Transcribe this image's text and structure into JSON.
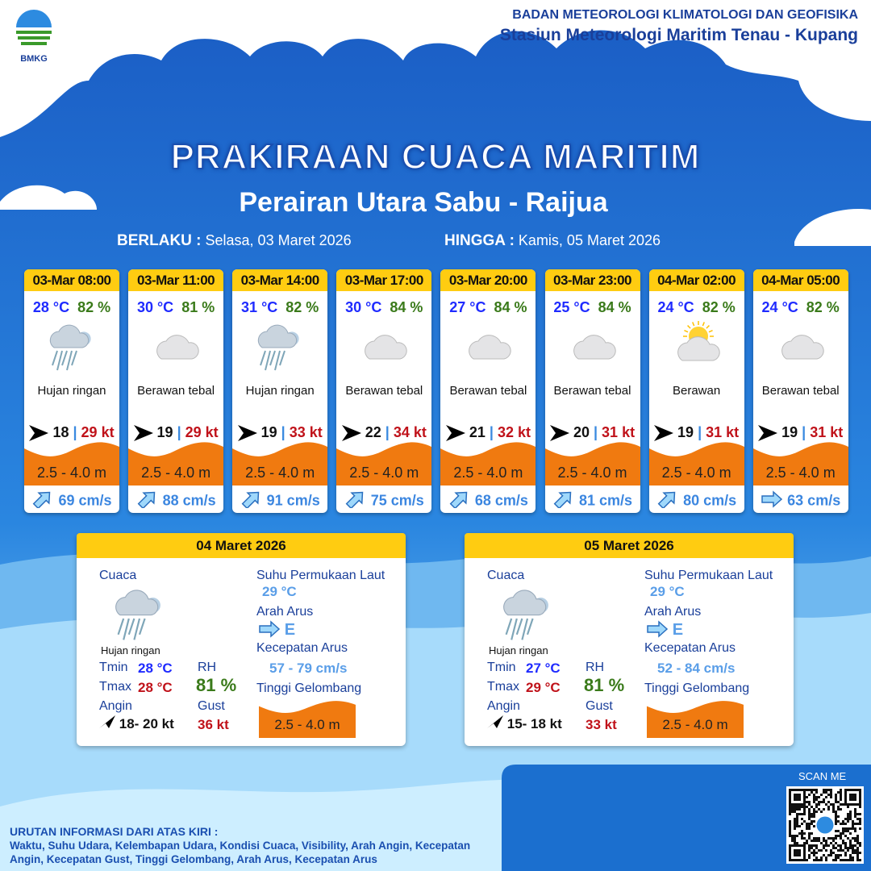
{
  "header": {
    "org": "BADAN METEOROLOGI KLIMATOLOGI DAN GEOFISIKA",
    "station": "Stasiun Meteorologi Maritim Tenau - Kupang",
    "logo_text": "BMKG"
  },
  "title": "PRAKIRAAN CUACA MARITIM",
  "subtitle": "Perairan Utara Sabu - Raijua",
  "period": {
    "from_label": "BERLAKU :",
    "from": "Selasa, 03 Maret 2026",
    "to_label": "HINGGA :",
    "to": "Kamis, 05 Maret 2026"
  },
  "colors": {
    "header_yellow": "#ffcc11",
    "wave_orange": "#f07a10",
    "temp_blue": "#1f2bff",
    "rh_green": "#3a7a1a",
    "gust_red": "#c0121a"
  },
  "forecasts": [
    {
      "time": "03-Mar 08:00",
      "temp": "28 °C",
      "rh": "82 %",
      "icon": "light-rain-icon",
      "cond": "Hujan ringan",
      "wind": "18",
      "gust": "29 kt",
      "wave": "2.5 - 4.0 m",
      "current_dir": "northeast",
      "current": "69 cm/s"
    },
    {
      "time": "03-Mar 11:00",
      "temp": "30 °C",
      "rh": "81 %",
      "icon": "overcast-icon",
      "cond": "Berawan tebal",
      "wind": "19",
      "gust": "29 kt",
      "wave": "2.5 - 4.0 m",
      "current_dir": "northeast",
      "current": "88 cm/s"
    },
    {
      "time": "03-Mar 14:00",
      "temp": "31 °C",
      "rh": "82 %",
      "icon": "light-rain-icon",
      "cond": "Hujan ringan",
      "wind": "19",
      "gust": "33 kt",
      "wave": "2.5 - 4.0 m",
      "current_dir": "northeast",
      "current": "91 cm/s"
    },
    {
      "time": "03-Mar 17:00",
      "temp": "30 °C",
      "rh": "84 %",
      "icon": "overcast-icon",
      "cond": "Berawan tebal",
      "wind": "22",
      "gust": "34 kt",
      "wave": "2.5 - 4.0 m",
      "current_dir": "northeast",
      "current": "75 cm/s"
    },
    {
      "time": "03-Mar 20:00",
      "temp": "27 °C",
      "rh": "84 %",
      "icon": "overcast-icon",
      "cond": "Berawan tebal",
      "wind": "21",
      "gust": "32 kt",
      "wave": "2.5 - 4.0 m",
      "current_dir": "northeast",
      "current": "68 cm/s"
    },
    {
      "time": "03-Mar 23:00",
      "temp": "25 °C",
      "rh": "84 %",
      "icon": "overcast-icon",
      "cond": "Berawan tebal",
      "wind": "20",
      "gust": "31 kt",
      "wave": "2.5 - 4.0 m",
      "current_dir": "northeast",
      "current": "81 cm/s"
    },
    {
      "time": "04-Mar 02:00",
      "temp": "24 °C",
      "rh": "82 %",
      "icon": "partly-cloudy-icon",
      "cond": "Berawan",
      "wind": "19",
      "gust": "31 kt",
      "wave": "2.5 - 4.0 m",
      "current_dir": "northeast",
      "current": "80 cm/s"
    },
    {
      "time": "04-Mar 05:00",
      "temp": "24 °C",
      "rh": "82 %",
      "icon": "overcast-icon",
      "cond": "Berawan tebal",
      "wind": "19",
      "gust": "31 kt",
      "wave": "2.5 - 4.0 m",
      "current_dir": "east",
      "current": "63 cm/s"
    }
  ],
  "labels": {
    "cuaca": "Cuaca",
    "sst": "Suhu Permukaan Laut",
    "arah_arus": "Arah Arus",
    "kec_arus": "Kecepatan Arus",
    "tinggi": "Tinggi Gelombang",
    "tmin": "Tmin",
    "tmax": "Tmax",
    "rh": "RH",
    "angin": "Angin",
    "gust": "Gust"
  },
  "daily": [
    {
      "date": "04 Maret 2026",
      "cond": "Hujan ringan",
      "icon": "light-rain-icon",
      "tmin": "28 °C",
      "tmax": "28 °C",
      "rh": "81 %",
      "wind": "18- 20 kt",
      "gust": "36 kt",
      "sst": "29 °C",
      "current_dir": "E",
      "current": "57  - 79 cm/s",
      "wave": "2.5 - 4.0 m"
    },
    {
      "date": "05 Maret 2026",
      "cond": "Hujan ringan",
      "icon": "light-rain-icon",
      "tmin": "27 °C",
      "tmax": "29 °C",
      "rh": "81 %",
      "wind": "15- 18 kt",
      "gust": "33 kt",
      "sst": "29 °C",
      "current_dir": "E",
      "current": "52  - 84 cm/s",
      "wave": "2.5 - 4.0 m"
    }
  ],
  "footer": {
    "heading": "URUTAN INFORMASI DARI ATAS KIRI :",
    "text": "Waktu, Suhu Udara, Kelembapan Udara, Kondisi Cuaca, Visibility, Arah Angin, Kecepatan Angin, Kecepatan Gust, Tinggi Gelombang, Arah Arus, Kecepatan Arus",
    "scan": "SCAN ME"
  }
}
